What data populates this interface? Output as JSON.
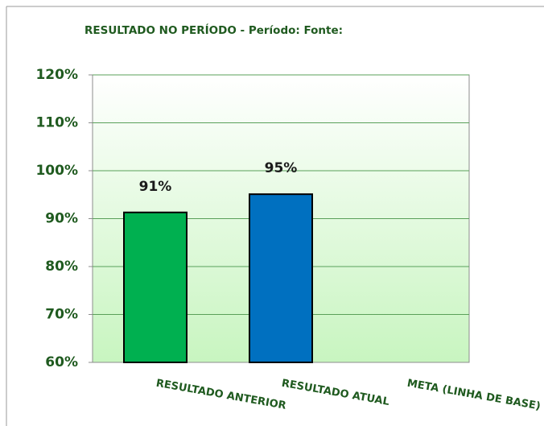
{
  "chart_data": {
    "type": "bar",
    "title": "RESULTADO NO PERÍODO - Período:   Fonte:",
    "categories": [
      "RESULTADO ANTERIOR",
      "RESULTADO ATUAL",
      "META (LINHA DE BASE)"
    ],
    "values": [
      91.3,
      95.1,
      60
    ],
    "value_labels": [
      "91%",
      "95%",
      null
    ],
    "colors": [
      "#00b050",
      "#0070c0",
      "#00b050"
    ],
    "ylim": [
      60,
      120
    ],
    "yticks": [
      {
        "value": 60,
        "label": "60%"
      },
      {
        "value": 70,
        "label": "70%"
      },
      {
        "value": 80,
        "label": "80%"
      },
      {
        "value": 90,
        "label": "90%"
      },
      {
        "value": 100,
        "label": "100%"
      },
      {
        "value": 110,
        "label": "110%"
      },
      {
        "value": 120,
        "label": "120%"
      }
    ],
    "grid": true
  }
}
